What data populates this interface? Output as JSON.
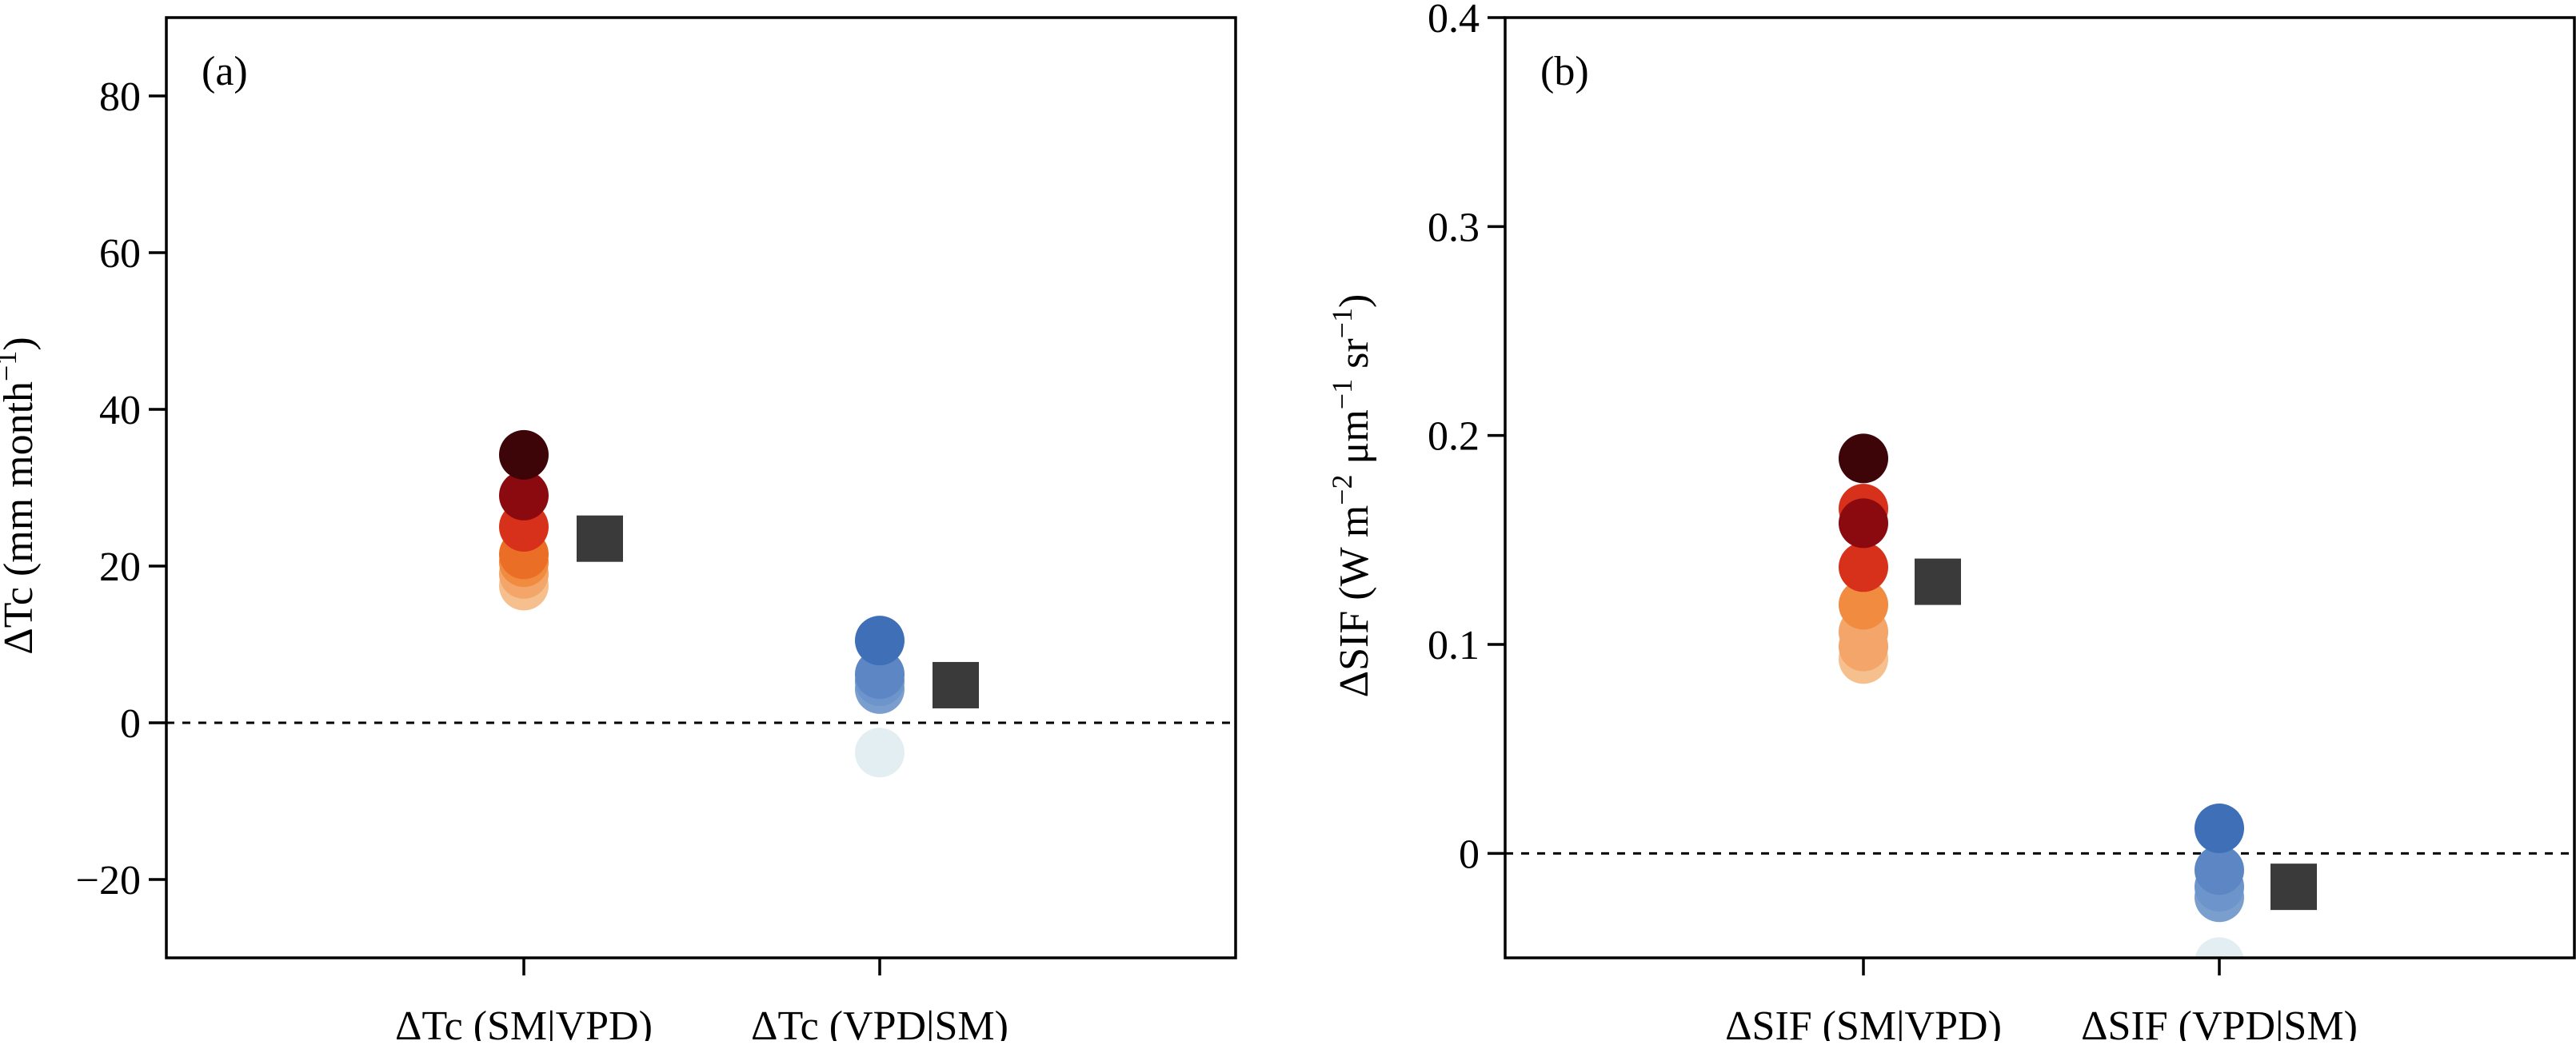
{
  "chart_data": [
    {
      "type": "scatter",
      "panel_label": "(a)",
      "ylabel": "ΔTc (mm month",
      "ylabel_sup": "−1",
      "ylabel_close": ")",
      "ylim": [
        -30,
        90
      ],
      "yticks": [
        -20,
        0,
        20,
        40,
        60,
        80
      ],
      "ytick_labels": [
        "−20",
        "0",
        "20",
        "40",
        "60",
        "80"
      ],
      "reference_line": {
        "y": 0,
        "style": "dashed"
      },
      "grid": false,
      "categories": [
        "ΔTc (SM|VPD)",
        "ΔTc (VPD|SM)"
      ],
      "series": [
        {
          "category": "ΔTc (SM|VPD)",
          "marker": "circle",
          "values": [
            17.5,
            19.0,
            20.5,
            21.5,
            25.0,
            29.0,
            34.2
          ],
          "colors": [
            "#F6C08E",
            "#F3A56A",
            "#F08B3F",
            "#EB6E26",
            "#D8311B",
            "#8B0A0F",
            "#3D0508"
          ]
        },
        {
          "category": "ΔTc (SM|VPD)",
          "marker": "square",
          "values": [
            23.5
          ],
          "colors": [
            "#3A3A3A"
          ]
        },
        {
          "category": "ΔTc (VPD|SM)",
          "marker": "circle",
          "values": [
            -3.8,
            4.3,
            5.3,
            6.2,
            10.5
          ],
          "colors": [
            "#E3EEF2",
            "#7A9FCF",
            "#6E95CB",
            "#5C86C4",
            "#3F6FB6"
          ]
        },
        {
          "category": "ΔTc (VPD|SM)",
          "marker": "square",
          "values": [
            4.8
          ],
          "colors": [
            "#3A3A3A"
          ]
        }
      ]
    },
    {
      "type": "scatter",
      "panel_label": "(b)",
      "ylabel": "ΔSIF (W m",
      "ylabel_parts": [
        {
          "text": "ΔSIF (W m",
          "sup": false
        },
        {
          "text": "−2",
          "sup": true
        },
        {
          "text": " μm",
          "sup": false
        },
        {
          "text": "−1",
          "sup": true
        },
        {
          "text": " sr",
          "sup": false
        },
        {
          "text": "−1",
          "sup": true
        },
        {
          "text": ")",
          "sup": false
        }
      ],
      "ylim": [
        -0.05,
        0.4
      ],
      "yticks": [
        0,
        0.1,
        0.2,
        0.3,
        0.4
      ],
      "ytick_labels": [
        "0",
        "0.1",
        "0.2",
        "0.3",
        "0.4"
      ],
      "reference_line": {
        "y": 0,
        "style": "dashed"
      },
      "grid": false,
      "categories": [
        "ΔSIF (SM|VPD)",
        "ΔSIF (VPD|SM)"
      ],
      "series": [
        {
          "category": "ΔSIF (SM|VPD)",
          "marker": "circle",
          "values": [
            0.093,
            0.099,
            0.106,
            0.119,
            0.137,
            0.165,
            0.158,
            0.189
          ],
          "colors": [
            "#F6C08E",
            "#F3A56A",
            "#F3A56A",
            "#F08B3F",
            "#D8311B",
            "#D8311B",
            "#8B0A0F",
            "#3D0508"
          ]
        },
        {
          "category": "ΔSIF (SM|VPD)",
          "marker": "square",
          "values": [
            0.13
          ],
          "colors": [
            "#3A3A3A"
          ]
        },
        {
          "category": "ΔSIF (VPD|SM)",
          "marker": "circle",
          "values": [
            -0.052,
            -0.021,
            -0.016,
            -0.008,
            0.012
          ],
          "colors": [
            "#E3EEF2",
            "#7A9FCF",
            "#6E95CB",
            "#5C86C4",
            "#3F6FB6"
          ]
        },
        {
          "category": "ΔSIF (VPD|SM)",
          "marker": "square",
          "values": [
            -0.016
          ],
          "colors": [
            "#3A3A3A"
          ]
        }
      ]
    }
  ]
}
